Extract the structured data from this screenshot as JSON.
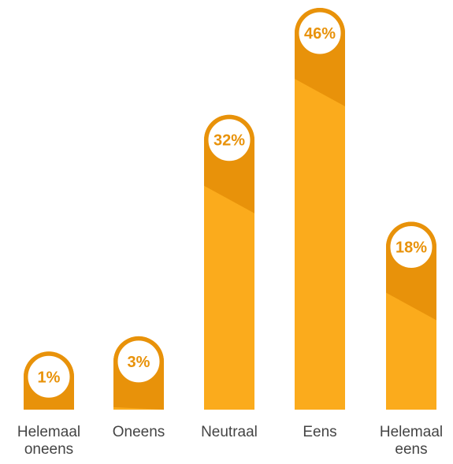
{
  "chart_data": {
    "type": "bar",
    "categories": [
      "Helemaal oneens",
      "Oneens",
      "Neutraal",
      "Eens",
      "Helemaal eens"
    ],
    "values": [
      1,
      3,
      32,
      46,
      18
    ],
    "value_labels": [
      "1%",
      "3%",
      "32%",
      "46%",
      "18%"
    ],
    "color": "#fbab1c",
    "shade_color": "#e8920a",
    "label_color": "#e8920a"
  }
}
